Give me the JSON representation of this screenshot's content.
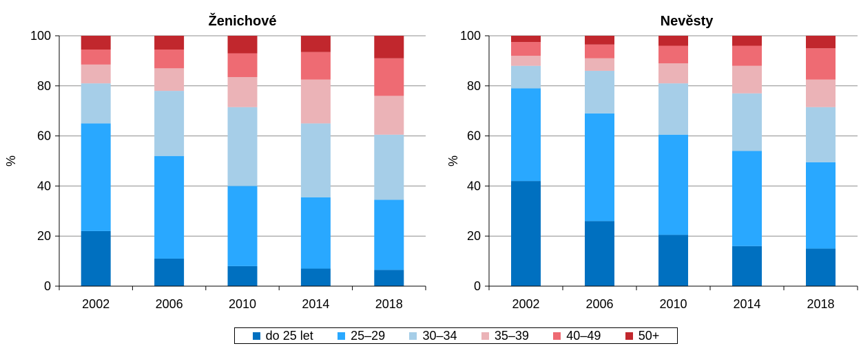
{
  "chart_data": [
    {
      "type": "bar",
      "stacked": true,
      "title": "Ženichové",
      "ylabel": "%",
      "xlabel": "",
      "ylim": [
        0,
        100
      ],
      "yticks": [
        0,
        20,
        40,
        60,
        80,
        100
      ],
      "grid": true,
      "categories": [
        "2002",
        "2006",
        "2010",
        "2014",
        "2018"
      ],
      "series": [
        {
          "name": "do 25 let",
          "color": "#0070C0",
          "values": [
            22,
            11,
            8,
            7,
            6.5
          ]
        },
        {
          "name": "25–29",
          "color": "#29A8FF",
          "values": [
            43,
            41,
            32,
            28.5,
            28
          ]
        },
        {
          "name": "30–34",
          "color": "#A6CEE8",
          "values": [
            16,
            26,
            31.5,
            29.5,
            26
          ]
        },
        {
          "name": "35–39",
          "color": "#EBB3B7",
          "values": [
            7.5,
            9,
            12,
            17.5,
            15.5
          ]
        },
        {
          "name": "40–49",
          "color": "#EE6B73",
          "values": [
            6,
            7.5,
            9.5,
            11,
            15
          ]
        },
        {
          "name": "50+",
          "color": "#C1272D",
          "values": [
            5.5,
            5.5,
            7,
            6.5,
            9
          ]
        }
      ]
    },
    {
      "type": "bar",
      "stacked": true,
      "title": "Nevěsty",
      "ylabel": "%",
      "xlabel": "",
      "ylim": [
        0,
        100
      ],
      "yticks": [
        0,
        20,
        40,
        60,
        80,
        100
      ],
      "grid": true,
      "categories": [
        "2002",
        "2006",
        "2010",
        "2014",
        "2018"
      ],
      "series": [
        {
          "name": "do 25 let",
          "color": "#0070C0",
          "values": [
            42,
            26,
            20.5,
            16,
            15
          ]
        },
        {
          "name": "25–29",
          "color": "#29A8FF",
          "values": [
            37,
            43,
            40,
            38,
            34.5
          ]
        },
        {
          "name": "30–34",
          "color": "#A6CEE8",
          "values": [
            9,
            17,
            20.5,
            23,
            22
          ]
        },
        {
          "name": "35–39",
          "color": "#EBB3B7",
          "values": [
            4,
            5,
            8,
            11,
            11
          ]
        },
        {
          "name": "40–49",
          "color": "#EE6B73",
          "values": [
            5.5,
            5.5,
            7,
            8,
            12.5
          ]
        },
        {
          "name": "50+",
          "color": "#C1272D",
          "values": [
            2.5,
            3.5,
            4,
            4,
            5
          ]
        }
      ]
    }
  ],
  "legend": {
    "placement": "bottom-center",
    "items": [
      {
        "label": "do 25 let",
        "color": "#0070C0"
      },
      {
        "label": "25–29",
        "color": "#29A8FF"
      },
      {
        "label": "30–34",
        "color": "#A6CEE8"
      },
      {
        "label": "35–39",
        "color": "#EBB3B7"
      },
      {
        "label": "40–49",
        "color": "#EE6B73"
      },
      {
        "label": "50+",
        "color": "#C1272D"
      }
    ]
  }
}
